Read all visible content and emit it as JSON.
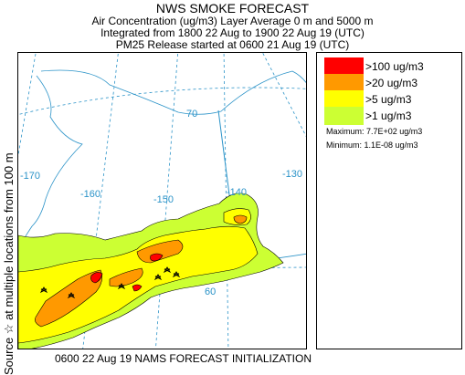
{
  "header": {
    "title": "NWS SMOKE FORECAST",
    "line1": "Air Concentration (ug/m3) Layer Average    0 m and  5000 m",
    "line2": "Integrated from 1800 22 Aug to 1900 22 Aug 19 (UTC)",
    "line3": "PM25 Release started at 0600 21 Aug 19 (UTC)"
  },
  "side_label": "Source ☆  at multiple locations  from   100 m",
  "footer": "0600 22 Aug 19 NAMS FORECAST INITIALIZATION",
  "legend": {
    "items": [
      {
        "label": ">100 ug/m3",
        "color": "#ff0000"
      },
      {
        "label": ">20 ug/m3",
        "color": "#ff9900"
      },
      {
        "label": ">5 ug/m3",
        "color": "#ffff00"
      },
      {
        "label": ">1 ug/m3",
        "color": "#ccff33"
      }
    ],
    "maximum": "Maximum: 7.7E+02 ug/m3",
    "minimum": "Minimum: 1.1E-08 ug/m3"
  },
  "map": {
    "graticule_labels": [
      "-170",
      "-160",
      "-150",
      "-140",
      "-130",
      "70",
      "60"
    ],
    "graticule_color": "#2b93c8"
  }
}
